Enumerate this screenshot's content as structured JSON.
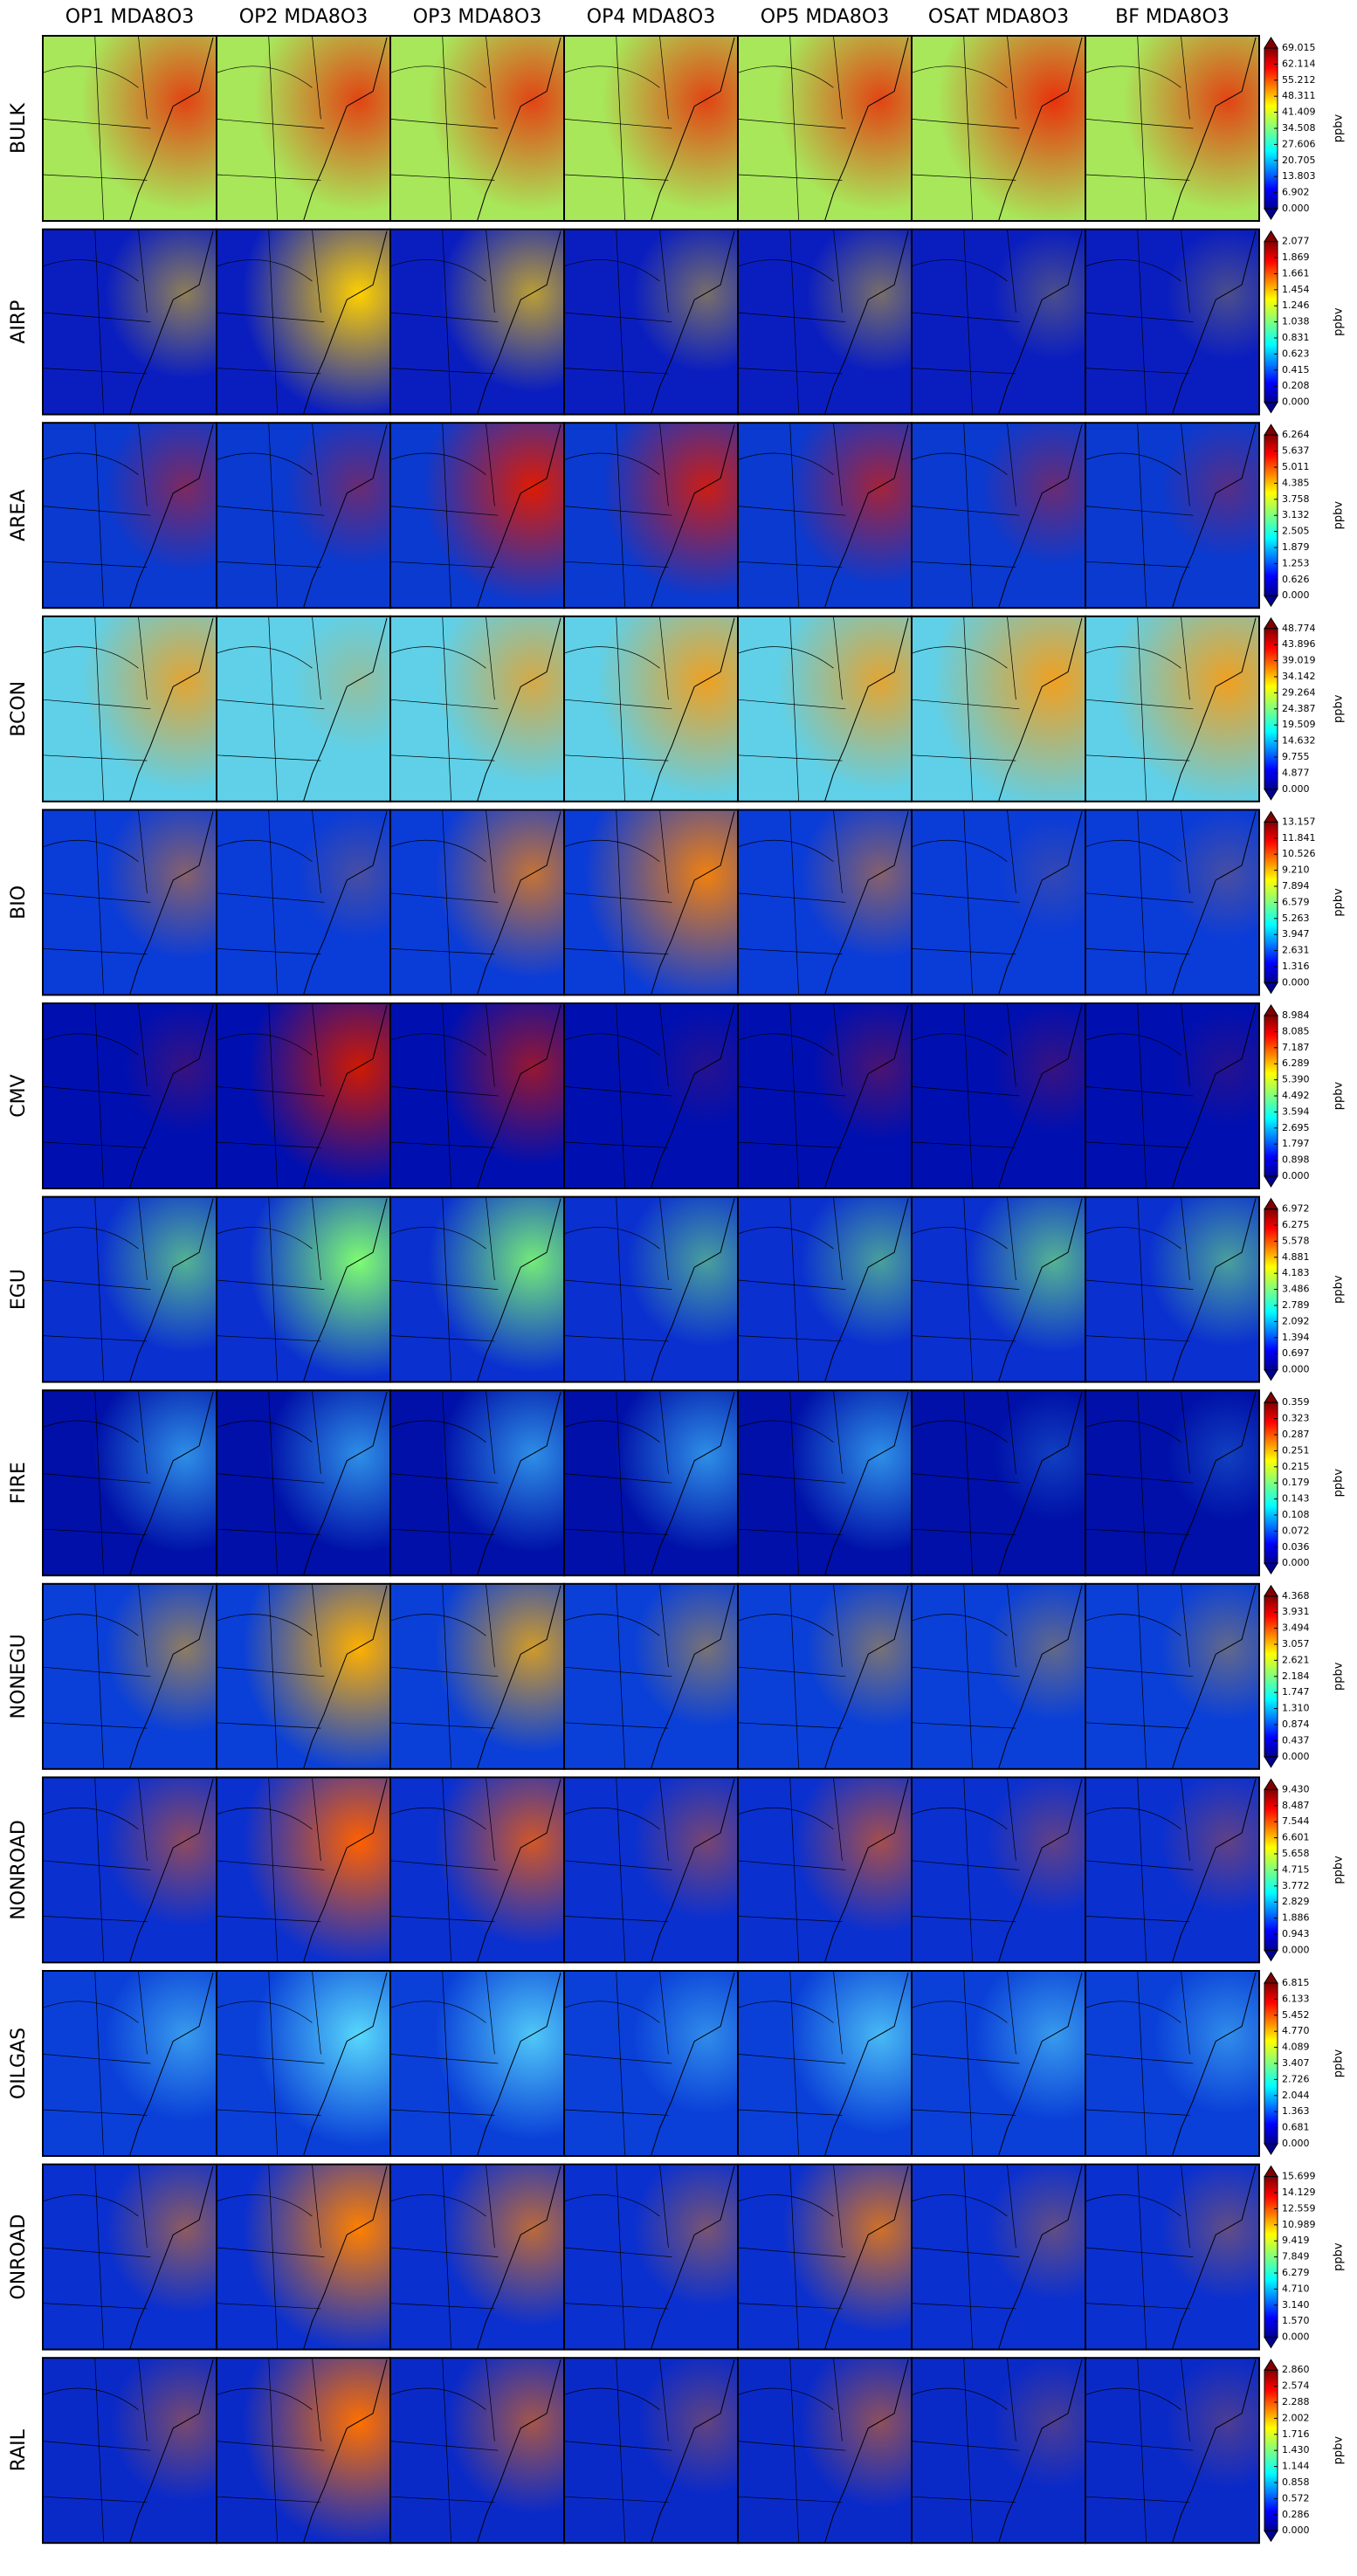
{
  "columns": [
    "OP1 MDA8O3",
    "OP2 MDA8O3",
    "OP3 MDA8O3",
    "OP4 MDA8O3",
    "OP5 MDA8O3",
    "OSAT MDA8O3",
    "BF MDA8O3"
  ],
  "unit": "ppbv",
  "rows": [
    {
      "label": "BULK",
      "ticks": [
        "69.015",
        "62.114",
        "55.212",
        "48.311",
        "41.409",
        "34.508",
        "27.606",
        "20.705",
        "13.803",
        "6.902",
        "0.000"
      ]
    },
    {
      "label": "AIRP",
      "ticks": [
        "2.077",
        "1.869",
        "1.661",
        "1.454",
        "1.246",
        "1.038",
        "0.831",
        "0.623",
        "0.415",
        "0.208",
        "0.000"
      ]
    },
    {
      "label": "AREA",
      "ticks": [
        "6.264",
        "5.637",
        "5.011",
        "4.385",
        "3.758",
        "3.132",
        "2.505",
        "1.879",
        "1.253",
        "0.626",
        "0.000"
      ]
    },
    {
      "label": "BCON",
      "ticks": [
        "48.774",
        "43.896",
        "39.019",
        "34.142",
        "29.264",
        "24.387",
        "19.509",
        "14.632",
        "9.755",
        "4.877",
        "0.000"
      ]
    },
    {
      "label": "BIO",
      "ticks": [
        "13.157",
        "11.841",
        "10.526",
        "9.210",
        "7.894",
        "6.579",
        "5.263",
        "3.947",
        "2.631",
        "1.316",
        "0.000"
      ]
    },
    {
      "label": "CMV",
      "ticks": [
        "8.984",
        "8.085",
        "7.187",
        "6.289",
        "5.390",
        "4.492",
        "3.594",
        "2.695",
        "1.797",
        "0.898",
        "0.000"
      ]
    },
    {
      "label": "EGU",
      "ticks": [
        "6.972",
        "6.275",
        "5.578",
        "4.881",
        "4.183",
        "3.486",
        "2.789",
        "2.092",
        "1.394",
        "0.697",
        "0.000"
      ]
    },
    {
      "label": "FIRE",
      "ticks": [
        "0.359",
        "0.323",
        "0.287",
        "0.251",
        "0.215",
        "0.179",
        "0.143",
        "0.108",
        "0.072",
        "0.036",
        "0.000"
      ]
    },
    {
      "label": "NONEGU",
      "ticks": [
        "4.368",
        "3.931",
        "3.494",
        "3.057",
        "2.621",
        "2.184",
        "1.747",
        "1.310",
        "0.874",
        "0.437",
        "0.000"
      ]
    },
    {
      "label": "NONROAD",
      "ticks": [
        "9.430",
        "8.487",
        "7.544",
        "6.601",
        "5.658",
        "4.715",
        "3.772",
        "2.829",
        "1.886",
        "0.943",
        "0.000"
      ]
    },
    {
      "label": "OILGAS",
      "ticks": [
        "6.815",
        "6.133",
        "5.452",
        "4.770",
        "4.089",
        "3.407",
        "2.726",
        "2.044",
        "1.363",
        "0.681",
        "0.000"
      ]
    },
    {
      "label": "ONROAD",
      "ticks": [
        "15.699",
        "14.129",
        "12.559",
        "10.989",
        "9.419",
        "7.849",
        "6.279",
        "4.710",
        "3.140",
        "1.570",
        "0.000"
      ]
    },
    {
      "label": "RAIL",
      "ticks": [
        "2.860",
        "2.574",
        "2.288",
        "2.002",
        "1.716",
        "1.430",
        "1.144",
        "0.858",
        "0.572",
        "0.286",
        "0.000"
      ]
    }
  ]
}
